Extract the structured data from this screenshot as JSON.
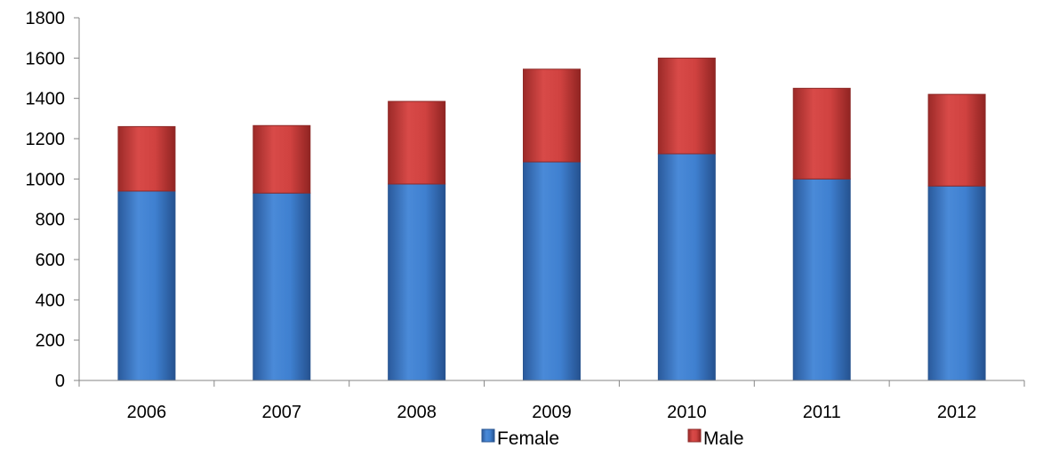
{
  "chart_data": {
    "type": "bar",
    "stacked": true,
    "categories": [
      "2006",
      "2007",
      "2008",
      "2009",
      "2010",
      "2011",
      "2012"
    ],
    "series": [
      {
        "name": "Female",
        "color": "#3a78c8",
        "values": [
          940,
          930,
          975,
          1085,
          1125,
          1000,
          965
        ]
      },
      {
        "name": "Male",
        "color": "#c83a38",
        "values": [
          320,
          335,
          410,
          460,
          475,
          450,
          455
        ]
      }
    ],
    "title": "",
    "xlabel": "",
    "ylabel": "",
    "ylim": [
      0,
      1800
    ],
    "yticks": [
      "0",
      "200",
      "400",
      "600",
      "800",
      "1000",
      "1200",
      "1400",
      "1600",
      "1800"
    ],
    "grid": false,
    "legend_position": "bottom"
  }
}
